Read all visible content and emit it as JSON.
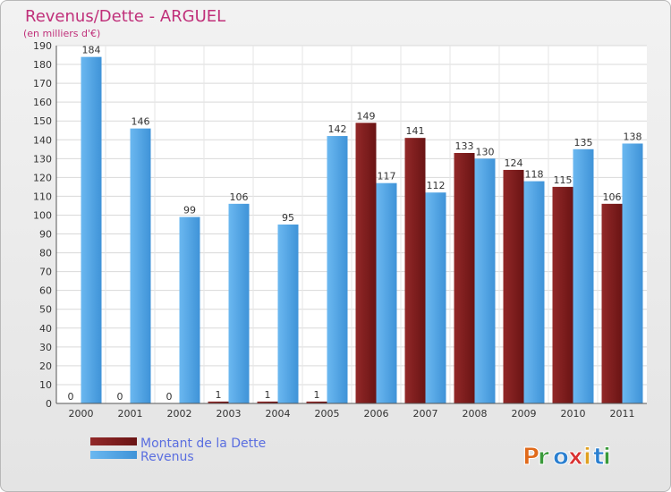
{
  "chart_data": {
    "type": "bar",
    "title": "Revenus/Dette - ARGUEL",
    "subtitle": "(en milliers d'€)",
    "categories": [
      "2000",
      "2001",
      "2002",
      "2003",
      "2004",
      "2005",
      "2006",
      "2007",
      "2008",
      "2009",
      "2010",
      "2011"
    ],
    "series": [
      {
        "name": "Montant de la Dette",
        "color": "#7b1a1a",
        "values": [
          0,
          0,
          0,
          1,
          1,
          1,
          149,
          141,
          133,
          124,
          115,
          106
        ]
      },
      {
        "name": "Revenus",
        "color": "#4aa3e6",
        "values": [
          184,
          146,
          99,
          106,
          95,
          142,
          117,
          112,
          130,
          118,
          135,
          138
        ]
      }
    ],
    "ylim": [
      0,
      190
    ],
    "ytick_step": 10,
    "grid": true,
    "legend_position": "bottom-left"
  },
  "branding": {
    "logo_text": "Proxiti",
    "logo_colors": [
      "#e06a1b",
      "#3a9a3a",
      "#2a7fd0",
      "#d93030",
      "#e0a020",
      "#2a7fd0",
      "#3a9a3a"
    ]
  }
}
